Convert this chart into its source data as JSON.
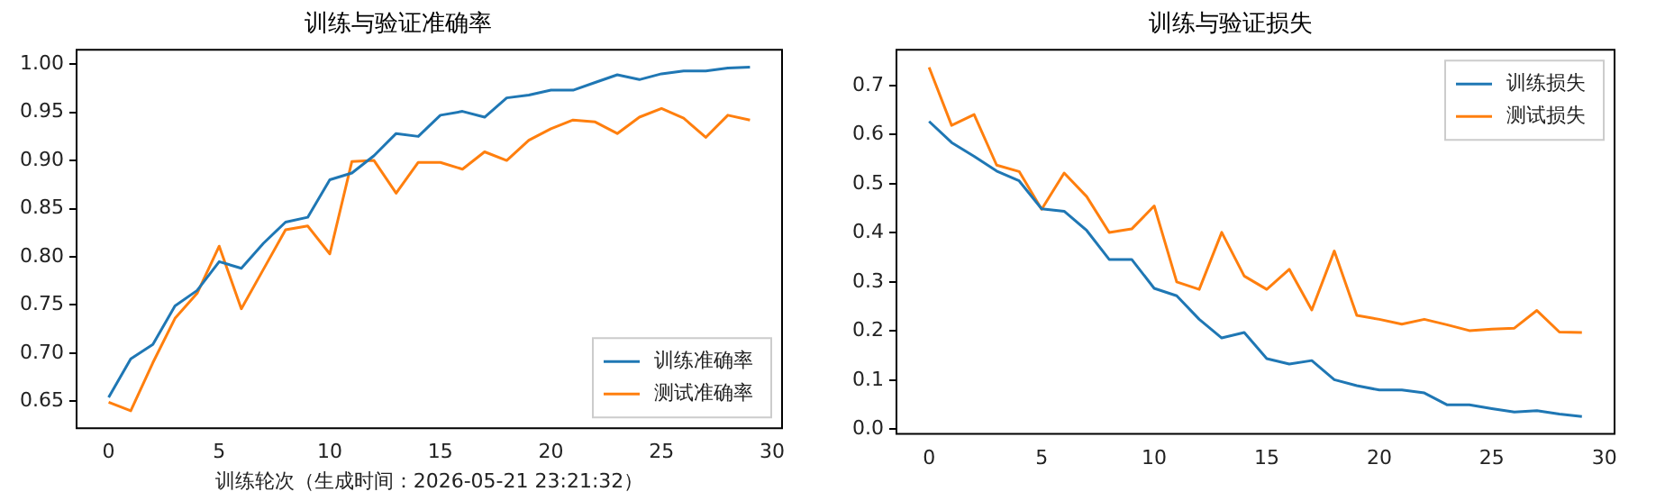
{
  "chart_data": [
    {
      "type": "line",
      "title": "训练与验证准确率",
      "xlabel": "训练轮次（生成时间：2026-05-21 23:21:32）",
      "x": [
        0,
        1,
        2,
        3,
        4,
        5,
        6,
        7,
        8,
        9,
        10,
        11,
        12,
        13,
        14,
        15,
        16,
        17,
        18,
        19,
        20,
        21,
        22,
        23,
        24,
        25,
        26,
        27,
        28,
        29
      ],
      "series": [
        {
          "name": "训练准确率",
          "color": "#1f77b4",
          "values": [
            0.654,
            0.694,
            0.709,
            0.749,
            0.765,
            0.795,
            0.788,
            0.814,
            0.836,
            0.841,
            0.88,
            0.887,
            0.905,
            0.928,
            0.925,
            0.947,
            0.951,
            0.945,
            0.965,
            0.968,
            0.973,
            0.973,
            0.981,
            0.989,
            0.984,
            0.99,
            0.993,
            0.993,
            0.996,
            0.997
          ]
        },
        {
          "name": "测试准确率",
          "color": "#ff7f0e",
          "values": [
            0.649,
            0.64,
            0.69,
            0.736,
            0.762,
            0.811,
            0.746,
            0.787,
            0.828,
            0.832,
            0.803,
            0.899,
            0.9,
            0.866,
            0.898,
            0.898,
            0.891,
            0.909,
            0.9,
            0.921,
            0.933,
            0.942,
            0.94,
            0.928,
            0.945,
            0.954,
            0.944,
            0.924,
            0.947,
            0.942
          ]
        }
      ],
      "xlim": [
        -1.45,
        30.45
      ],
      "xticks": [
        0,
        5,
        10,
        15,
        20,
        25,
        30
      ],
      "ylim": [
        0.622,
        1.015
      ],
      "yticks": [
        0.65,
        {
          "value": 0.7,
          "label": "0.70"
        },
        0.75,
        {
          "value": 0.8,
          "label": "0.80"
        },
        0.85,
        {
          "value": 0.9,
          "label": "0.90"
        },
        0.95,
        {
          "value": 1,
          "label": "1.00"
        }
      ],
      "grid": false,
      "legend": "bottom right",
      "marker": "none",
      "line_style": "solid"
    },
    {
      "type": "line",
      "title": "训练与验证损失",
      "x": [
        0,
        1,
        2,
        3,
        4,
        5,
        6,
        7,
        8,
        9,
        10,
        11,
        12,
        13,
        14,
        15,
        16,
        17,
        18,
        19,
        20,
        21,
        22,
        23,
        24,
        25,
        26,
        27,
        28,
        29
      ],
      "series": [
        {
          "name": "训练损失",
          "color": "#1f77b4",
          "values": [
            0.627,
            0.584,
            0.556,
            0.526,
            0.506,
            0.449,
            0.444,
            0.405,
            0.346,
            0.346,
            0.287,
            0.272,
            0.224,
            0.186,
            0.197,
            0.144,
            0.133,
            0.14,
            0.101,
            0.089,
            0.08,
            0.08,
            0.074,
            0.05,
            0.05,
            0.042,
            0.035,
            0.038,
            0.031,
            0.026
          ]
        },
        {
          "name": "测试损失",
          "color": "#ff7f0e",
          "values": [
            0.737,
            0.619,
            0.641,
            0.538,
            0.525,
            0.448,
            0.522,
            0.474,
            0.401,
            0.408,
            0.455,
            0.3,
            0.285,
            0.401,
            0.312,
            0.285,
            0.326,
            0.243,
            0.363,
            0.232,
            0.224,
            0.214,
            0.224,
            0.213,
            0.201,
            0.204,
            0.206,
            0.242,
            0.198,
            0.197
          ]
        }
      ],
      "xlim": [
        -1.45,
        30.45
      ],
      "xticks": [
        0,
        5,
        10,
        15,
        20,
        25,
        30
      ],
      "ylim": [
        -0.0095,
        0.773
      ],
      "yticks": [
        {
          "value": 0,
          "label": "0.0"
        },
        {
          "value": 0.1,
          "label": "0.1"
        },
        {
          "value": 0.2,
          "label": "0.2"
        },
        {
          "value": 0.3,
          "label": "0.3"
        },
        {
          "value": 0.4,
          "label": "0.4"
        },
        {
          "value": 0.5,
          "label": "0.5"
        },
        {
          "value": 0.6,
          "label": "0.6"
        },
        {
          "value": 0.7,
          "label": "0.7"
        }
      ],
      "grid": false,
      "legend": "top right",
      "marker": "none",
      "line_style": "solid"
    }
  ]
}
